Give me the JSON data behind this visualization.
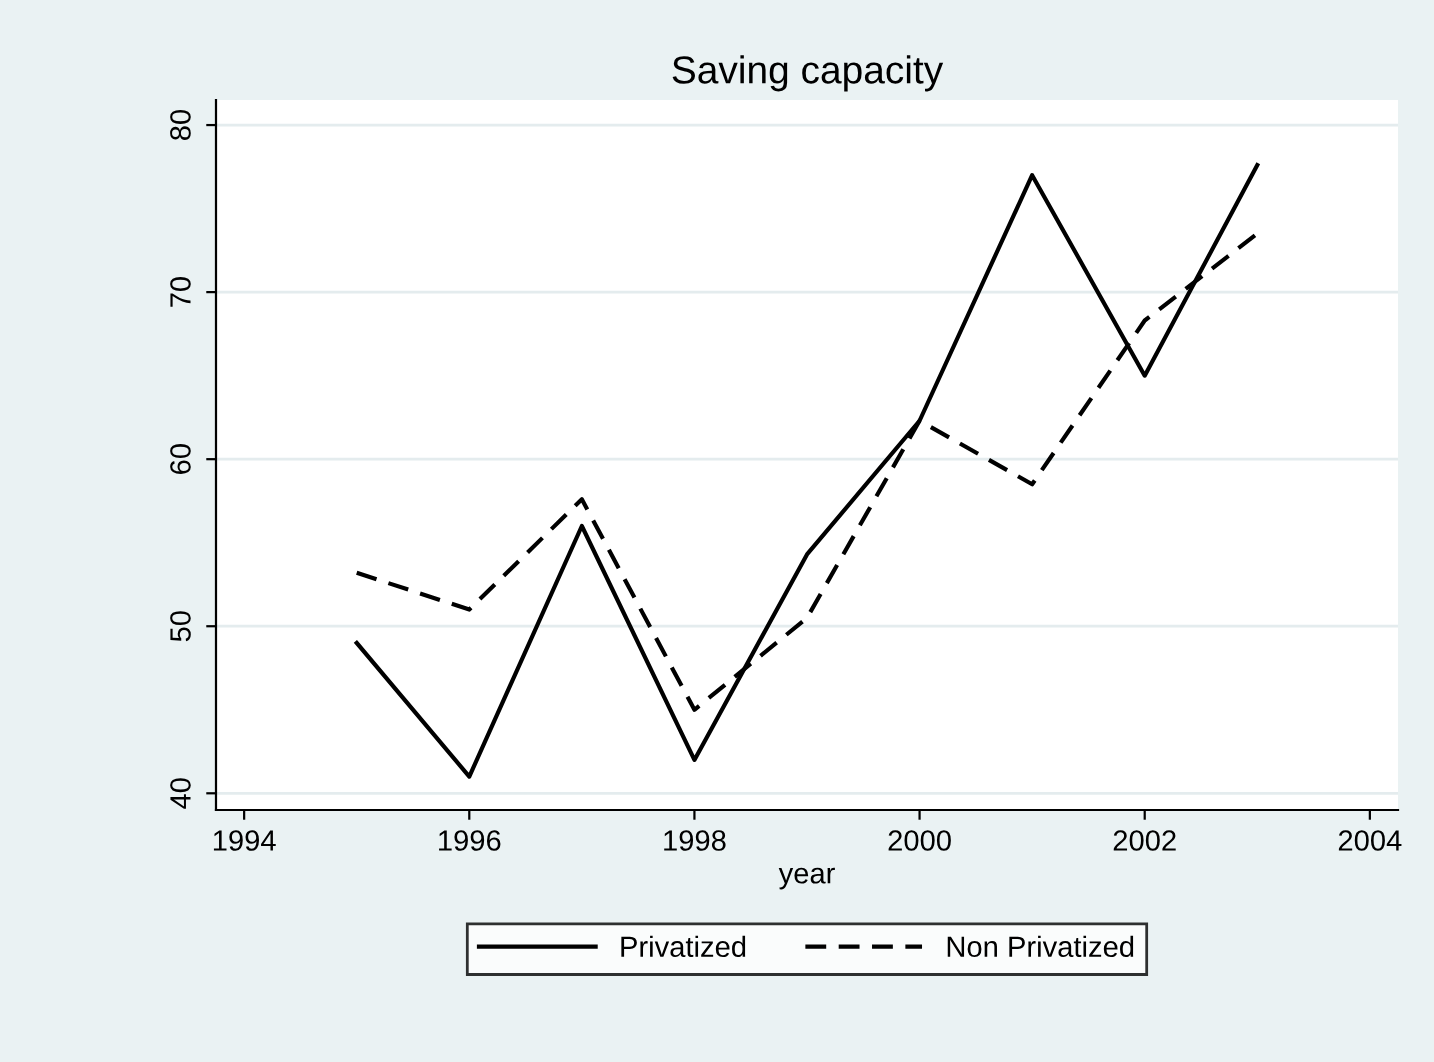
{
  "chart_data": {
    "type": "line",
    "title": "Saving capacity",
    "xlabel": "year",
    "x": [
      1995,
      1996,
      1997,
      1998,
      1999,
      2000,
      2001,
      2002,
      2003
    ],
    "series": [
      {
        "name": "Privatized",
        "color": "#000000",
        "line_style": "solid",
        "values": [
          49,
          41,
          56,
          42,
          54.3,
          62.3,
          77,
          65,
          77.6
        ]
      },
      {
        "name": "Non Privatized",
        "color": "#000000",
        "line_style": "dashed",
        "values": [
          53.2,
          51,
          57.6,
          45,
          50.5,
          62.3,
          58.5,
          68.3,
          73.5
        ]
      }
    ],
    "xlim": [
      1993.75,
      2004.25
    ],
    "xticks": [
      1994,
      1996,
      1998,
      2000,
      2002,
      2004
    ],
    "ylim": [
      39,
      81.5
    ],
    "yticks": [
      40,
      50,
      60,
      70,
      80
    ],
    "grid": "y",
    "legend": "bottom",
    "marker": "none"
  }
}
